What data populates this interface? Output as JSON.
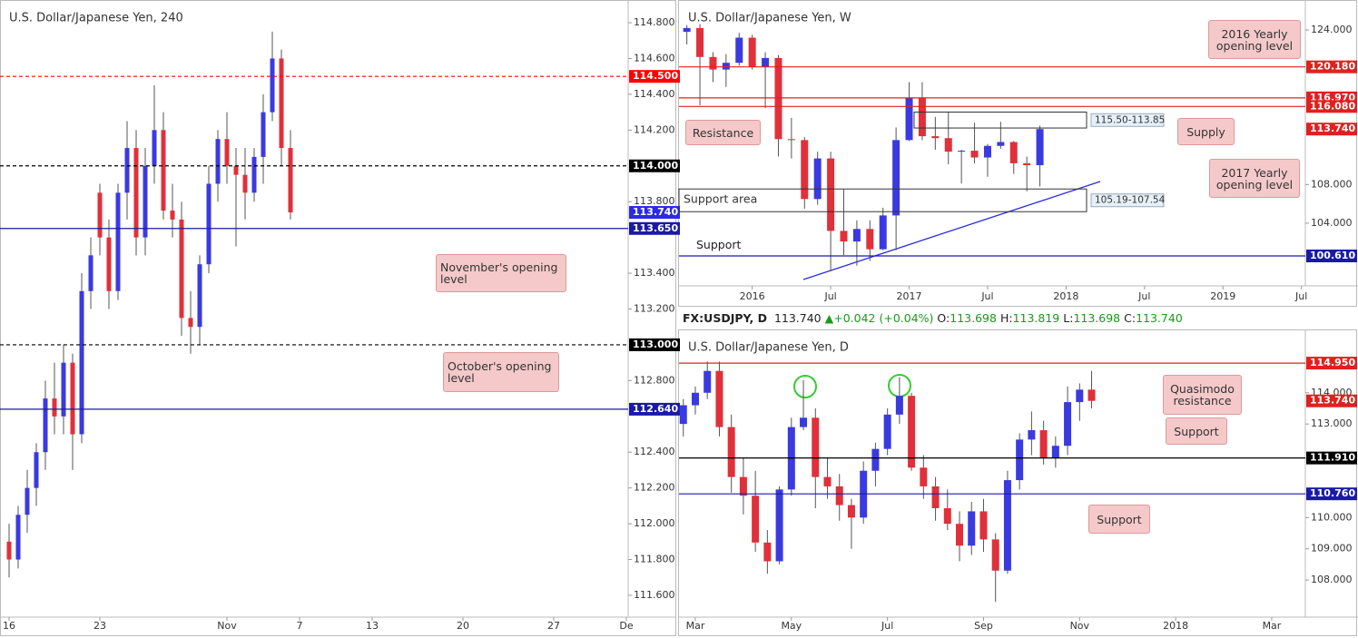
{
  "chart_data": [
    {
      "type": "candlestick",
      "title": "U.S. Dollar/Japanese Yen, 240",
      "up_color": "#3a3ae0",
      "down_color": "#e0303a",
      "xlim": [
        -0.5,
        34.1
      ],
      "xticks": [
        {
          "value": 0,
          "label": "16"
        },
        {
          "value": 5,
          "label": "23"
        },
        {
          "value": 12,
          "label": "Nov"
        },
        {
          "value": 16,
          "label": "7"
        },
        {
          "value": 20,
          "label": "13"
        },
        {
          "value": 25,
          "label": "20"
        },
        {
          "value": 30,
          "label": "27"
        },
        {
          "value": 34,
          "label": "De"
        }
      ],
      "ylim": [
        111.478,
        114.927
      ],
      "yticks": [
        {
          "value": 111.6,
          "label": "111.600"
        },
        {
          "value": 111.8,
          "label": "111.800"
        },
        {
          "value": 112.0,
          "label": "112.000"
        },
        {
          "value": 112.2,
          "label": "112.200"
        },
        {
          "value": 112.4,
          "label": "112.400"
        },
        {
          "value": 112.8,
          "label": "112.800"
        },
        {
          "value": 113.2,
          "label": "113.200"
        },
        {
          "value": 113.4,
          "label": "113.400"
        },
        {
          "value": 113.8,
          "label": "113.800"
        },
        {
          "value": 114.2,
          "label": "114.200"
        },
        {
          "value": 114.4,
          "label": "114.400"
        },
        {
          "value": 114.6,
          "label": "114.600"
        },
        {
          "value": 114.8,
          "label": "114.800"
        }
      ],
      "x": [
        0,
        0.5,
        1,
        1.5,
        2,
        2.5,
        3,
        3.5,
        4,
        4.5,
        5,
        5.5,
        6,
        6.5,
        7,
        7.5,
        8,
        8.5,
        9,
        9.5,
        10,
        10.5,
        11,
        11.5,
        12,
        12.5,
        13,
        13.5,
        14,
        14.5,
        15,
        15.5
      ],
      "open": [
        111.9,
        111.8,
        112.05,
        112.2,
        112.4,
        112.7,
        112.6,
        112.9,
        112.5,
        113.3,
        113.85,
        113.6,
        113.3,
        113.85,
        114.1,
        113.6,
        114.0,
        114.2,
        113.75,
        113.7,
        113.15,
        113.1,
        113.45,
        113.9,
        114.15,
        114.0,
        113.95,
        113.85,
        114.05,
        114.3,
        114.6,
        114.1
      ],
      "high": [
        112.0,
        112.1,
        112.3,
        112.45,
        112.8,
        112.9,
        113.0,
        112.95,
        113.4,
        113.6,
        113.9,
        113.7,
        113.9,
        114.25,
        114.2,
        114.1,
        114.45,
        114.3,
        113.9,
        113.8,
        113.3,
        113.5,
        114.0,
        114.2,
        114.3,
        114.1,
        114.1,
        114.1,
        114.4,
        114.75,
        114.65,
        114.2
      ],
      "low": [
        111.7,
        111.75,
        111.95,
        112.1,
        112.3,
        112.5,
        112.5,
        112.3,
        112.45,
        113.2,
        113.5,
        113.2,
        113.25,
        113.7,
        113.5,
        113.5,
        113.9,
        113.7,
        113.6,
        113.05,
        112.95,
        113.0,
        113.4,
        113.8,
        113.9,
        113.55,
        113.7,
        113.8,
        113.9,
        114.25,
        114.0,
        113.7
      ],
      "close": [
        111.8,
        112.05,
        112.2,
        112.4,
        112.7,
        112.6,
        112.9,
        112.5,
        113.3,
        113.5,
        113.6,
        113.3,
        113.85,
        114.1,
        113.6,
        114.0,
        114.2,
        113.75,
        113.7,
        113.15,
        113.1,
        113.45,
        113.9,
        114.15,
        114.0,
        113.95,
        113.85,
        114.05,
        114.3,
        114.6,
        114.1,
        113.74
      ],
      "levels": [
        {
          "value": 114.5,
          "label": "114.500",
          "color": "#ff0000",
          "style": "dashed"
        },
        {
          "value": 114.0,
          "label": "114.000",
          "color": "#000000",
          "style": "dashed"
        },
        {
          "value": 113.74,
          "label": "113.740",
          "color": "#2a2ae6",
          "style": "none"
        },
        {
          "value": 113.65,
          "label": "113.650",
          "color": "#1a1aa6",
          "style": "solid"
        },
        {
          "value": 113.0,
          "label": "113.000",
          "color": "#000000",
          "style": "dashed"
        },
        {
          "value": 112.64,
          "label": "112.640",
          "color": "#1a1aa6",
          "style": "solid"
        }
      ],
      "annotations": [
        "November's opening level",
        "October's opening level"
      ]
    },
    {
      "type": "candlestick",
      "title": "U.S. Dollar/Japanese Yen, W",
      "up_color": "#3a3ae0",
      "down_color": "#e0303a",
      "xlim": [
        6.4,
        54.3
      ],
      "xticks": [
        {
          "value": 12,
          "label": "2016"
        },
        {
          "value": 18,
          "label": "Jul"
        },
        {
          "value": 24,
          "label": "2017"
        },
        {
          "value": 30,
          "label": "Jul"
        },
        {
          "value": 36,
          "label": "2018"
        },
        {
          "value": 42,
          "label": "Jul"
        },
        {
          "value": 48,
          "label": "2019"
        },
        {
          "value": 54,
          "label": "Jul"
        }
      ],
      "ylim": [
        97.51,
        127.1
      ],
      "yticks": [
        {
          "value": 104,
          "label": "104.000"
        },
        {
          "value": 108,
          "label": "108.000"
        },
        {
          "value": 124,
          "label": "124.000"
        }
      ],
      "x": [
        7,
        8,
        9,
        10,
        11,
        12,
        13,
        14,
        15,
        16,
        17,
        18,
        19,
        20,
        21,
        22,
        23,
        24,
        25,
        26,
        27,
        28,
        29,
        30,
        31,
        32,
        33,
        34
      ],
      "open": [
        123.8,
        124.2,
        121.2,
        119.9,
        120.6,
        123.2,
        120.2,
        121.1,
        112.7,
        112.6,
        106.5,
        110.7,
        103.2,
        102.1,
        103.4,
        101.3,
        104.8,
        112.6,
        117.0,
        113.0,
        112.8,
        111.4,
        111.5,
        110.8,
        112.0,
        112.4,
        110.2,
        110.0
      ],
      "high": [
        124.5,
        124.6,
        121.7,
        121.5,
        123.7,
        123.5,
        121.7,
        121.4,
        114.9,
        112.9,
        111.4,
        111.4,
        107.5,
        104.3,
        104.3,
        105.6,
        113.9,
        118.6,
        118.6,
        115.0,
        115.5,
        111.6,
        114.4,
        112.2,
        114.5,
        112.5,
        110.9,
        114.1
      ],
      "low": [
        122.5,
        116.2,
        118.6,
        118.1,
        120.3,
        119.9,
        115.9,
        110.9,
        110.7,
        105.5,
        105.9,
        99.0,
        100.7,
        99.6,
        100.1,
        101.2,
        101.2,
        112.5,
        112.6,
        111.6,
        110.1,
        108.1,
        110.2,
        108.8,
        111.7,
        109.1,
        107.3,
        107.8
      ],
      "close": [
        124.2,
        121.2,
        119.9,
        120.6,
        123.2,
        120.2,
        121.1,
        112.7,
        112.6,
        106.5,
        110.7,
        103.2,
        102.1,
        103.4,
        101.3,
        104.8,
        112.6,
        117.0,
        113.0,
        112.8,
        111.4,
        111.5,
        110.8,
        112.0,
        112.4,
        110.2,
        110.0,
        113.74
      ],
      "levels": [
        {
          "value": 120.18,
          "label": "120.180",
          "color": "#e02020",
          "style": "solid"
        },
        {
          "value": 116.97,
          "label": "116.970",
          "color": "#e02020",
          "style": "solid"
        },
        {
          "value": 116.08,
          "label": "116.080",
          "color": "#e02020",
          "style": "solid"
        },
        {
          "value": 113.74,
          "label": "113.740",
          "color": "#e02020",
          "style": "none"
        },
        {
          "value": 100.61,
          "label": "100.610",
          "color": "#1a1aa6",
          "style": "solid"
        }
      ],
      "zones": [
        {
          "range_label": "115.50-113.85",
          "low": 113.85,
          "high": 115.5
        },
        {
          "name": "Support area",
          "range_label": "105.19-107.54",
          "low": 105.19,
          "high": 107.54
        }
      ],
      "annotations": [
        "2016 Yearly opening level",
        "Resistance",
        "Supply",
        "2017 Yearly opening level",
        "Support"
      ]
    },
    {
      "type": "candlestick",
      "title": "U.S. Dollar/Japanese Yen, D",
      "up_color": "#3a3ae0",
      "down_color": "#e0303a",
      "header": {
        "symbol": "FX:USDJPY, D",
        "last": "113.740",
        "arrow": "▲",
        "change": "+0.042 (+0.04%)",
        "ohlc": [
          {
            "label": "O:",
            "value": "113.698"
          },
          {
            "label": "H:",
            "value": "113.819"
          },
          {
            "label": "L:",
            "value": "113.698"
          },
          {
            "label": "C:",
            "value": "113.740"
          }
        ]
      },
      "xlim": [
        1.66,
        14.7
      ],
      "xticks": [
        {
          "value": 2,
          "label": "Mar"
        },
        {
          "value": 4,
          "label": "May"
        },
        {
          "value": 6,
          "label": "Jul"
        },
        {
          "value": 8,
          "label": "Sep"
        },
        {
          "value": 10,
          "label": "Nov"
        },
        {
          "value": 12,
          "label": "2018"
        },
        {
          "value": 14,
          "label": "Mar"
        }
      ],
      "ylim": [
        106.81,
        116.0
      ],
      "yticks": [
        {
          "value": 108,
          "label": "108.000"
        },
        {
          "value": 109,
          "label": "109.000"
        },
        {
          "value": 110,
          "label": "110.000"
        },
        {
          "value": 113,
          "label": "113.000"
        },
        {
          "value": 114,
          "label": "114.000"
        }
      ],
      "x": [
        1.75,
        2.0,
        2.25,
        2.5,
        2.75,
        3.0,
        3.25,
        3.5,
        3.75,
        4.0,
        4.25,
        4.5,
        4.75,
        5.0,
        5.25,
        5.5,
        5.75,
        6.0,
        6.25,
        6.5,
        6.75,
        7.0,
        7.25,
        7.5,
        7.75,
        8.0,
        8.25,
        8.5,
        8.75,
        9.0,
        9.25,
        9.5,
        9.75,
        10.0,
        10.25
      ],
      "open": [
        113.0,
        113.6,
        114.0,
        114.7,
        112.9,
        111.3,
        110.7,
        109.2,
        108.6,
        110.9,
        112.9,
        113.2,
        111.3,
        111.0,
        110.4,
        110.0,
        111.5,
        112.2,
        113.3,
        113.9,
        111.6,
        111.0,
        110.3,
        109.8,
        109.1,
        110.2,
        109.3,
        108.3,
        111.2,
        112.5,
        112.8,
        111.9,
        112.3,
        113.7,
        114.1
      ],
      "high": [
        113.8,
        114.2,
        115.0,
        115.0,
        113.3,
        111.9,
        111.5,
        109.6,
        111.0,
        113.2,
        114.4,
        113.5,
        111.9,
        111.4,
        110.6,
        111.8,
        112.4,
        113.5,
        114.5,
        114.0,
        112.0,
        111.3,
        110.9,
        110.2,
        110.5,
        110.6,
        109.5,
        111.5,
        112.7,
        113.4,
        113.1,
        112.6,
        114.2,
        114.3,
        114.7
      ],
      "low": [
        112.6,
        113.3,
        113.8,
        112.6,
        110.8,
        110.1,
        108.9,
        108.2,
        108.5,
        110.7,
        112.8,
        110.3,
        110.6,
        109.9,
        109.0,
        109.8,
        111.0,
        112.0,
        113.0,
        111.5,
        110.6,
        109.9,
        109.6,
        108.6,
        108.8,
        108.9,
        107.3,
        108.2,
        110.9,
        112.0,
        111.7,
        111.6,
        112.0,
        113.1,
        113.5
      ],
      "close": [
        113.6,
        114.0,
        114.7,
        112.9,
        111.3,
        110.7,
        109.2,
        108.6,
        110.9,
        112.9,
        113.2,
        111.3,
        111.0,
        110.4,
        110.0,
        111.5,
        112.2,
        113.3,
        113.9,
        111.6,
        111.0,
        110.3,
        109.8,
        109.1,
        110.2,
        109.3,
        108.3,
        111.2,
        112.5,
        112.8,
        111.9,
        112.3,
        113.7,
        114.1,
        113.74
      ],
      "levels": [
        {
          "value": 114.95,
          "label": "114.950",
          "color": "#e02020",
          "style": "solid"
        },
        {
          "value": 113.74,
          "label": "113.740",
          "color": "#e02020",
          "style": "none"
        },
        {
          "value": 111.91,
          "label": "111.910",
          "color": "#000000",
          "style": "solid"
        },
        {
          "value": 110.76,
          "label": "110.760",
          "color": "#1a1aa6",
          "style": "solid"
        }
      ],
      "annotations": [
        "Quasimodo resistance",
        "Support",
        "Support"
      ]
    }
  ]
}
